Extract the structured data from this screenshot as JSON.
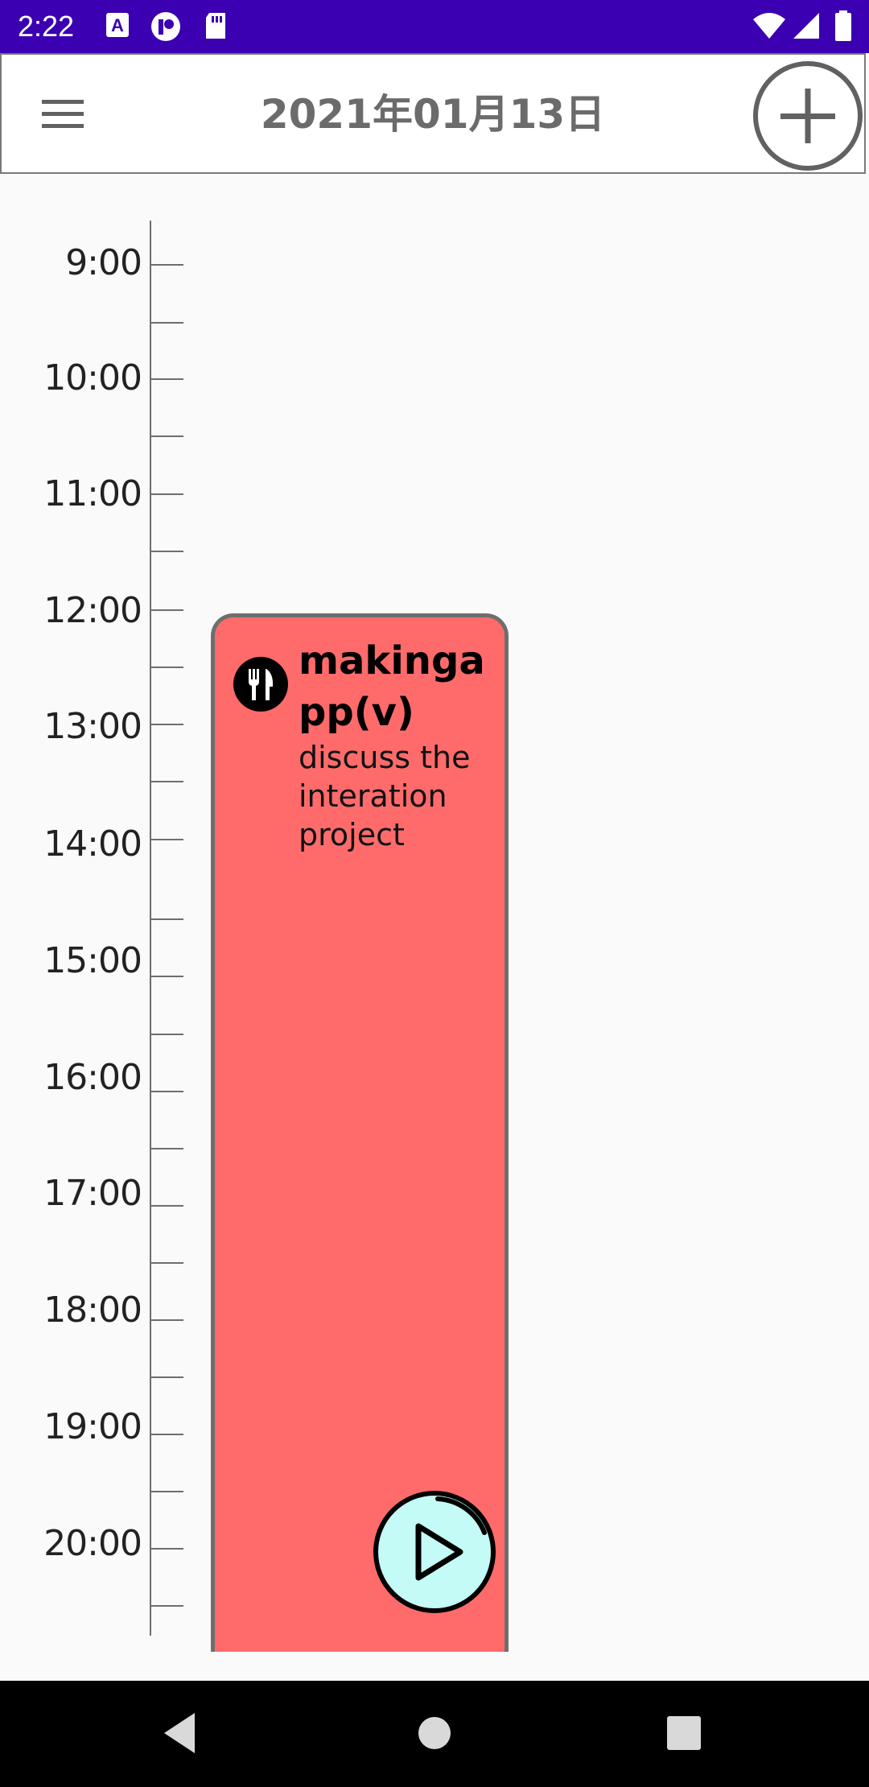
{
  "status_bar": {
    "time": "2:22",
    "icons": [
      "a-badge-icon",
      "p-badge-icon",
      "sd-card-icon",
      "wifi-icon",
      "signal-icon",
      "battery-icon"
    ]
  },
  "app_bar": {
    "title": "2021年01月13日",
    "menu_icon": "menu-icon",
    "add_icon": "add-circle-icon"
  },
  "timeline": {
    "hours": [
      "9:00",
      "10:00",
      "11:00",
      "12:00",
      "13:00",
      "14:00",
      "15:00",
      "16:00",
      "17:00",
      "18:00",
      "19:00",
      "20:00"
    ]
  },
  "event": {
    "title": "makingapp(v)",
    "description": "discuss the interation project",
    "icon": "restaurant-icon",
    "color": "#ff6b6b"
  },
  "play_button": {
    "icon": "play-icon",
    "color": "#c4fbf6"
  },
  "nav_bar": {
    "buttons": [
      "back-icon",
      "home-icon",
      "recents-icon"
    ]
  }
}
